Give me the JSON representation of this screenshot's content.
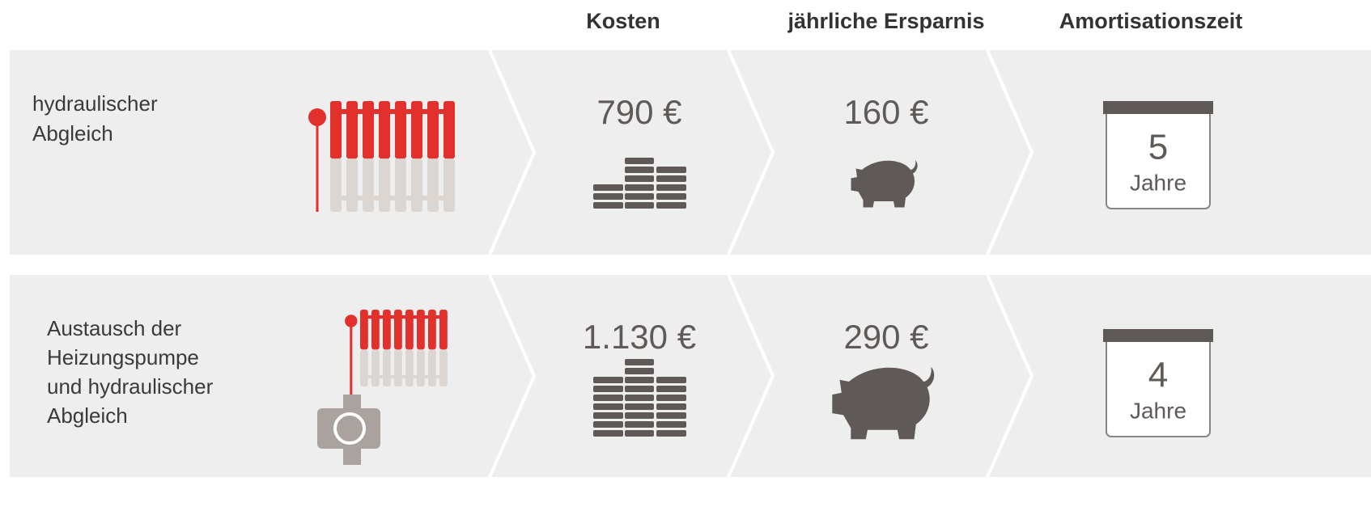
{
  "headers": [
    "Kosten",
    "jährliche Ersparnis",
    "Amortisationszeit"
  ],
  "rows": [
    {
      "label": [
        "hydraulischer",
        "Abgleich"
      ],
      "cost": "790 €",
      "saving": "160 €",
      "years": "5",
      "unit": "Jahre"
    },
    {
      "label": [
        "Austausch der",
        "Heizungspumpe",
        "und hydraulischer",
        "Abgleich"
      ],
      "cost": "1.130 €",
      "saving": "290 €",
      "years": "4",
      "unit": "Jahre"
    }
  ]
}
